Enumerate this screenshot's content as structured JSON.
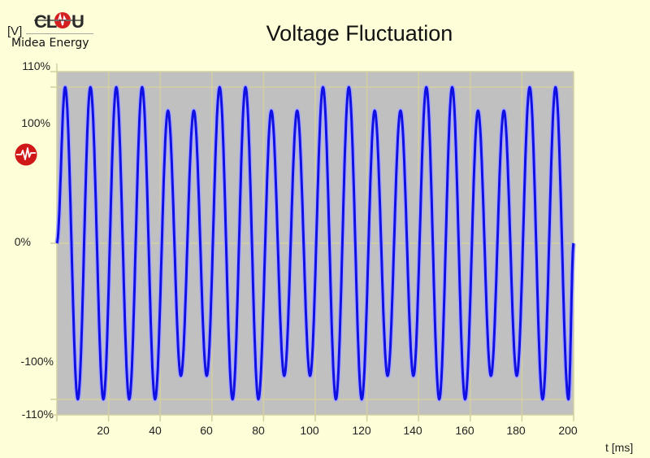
{
  "header": {
    "title": "Voltage Fluctuation",
    "y_unit": "[V]",
    "brand_logo_text": "CLOU",
    "brand_name": "Midea Energy"
  },
  "axes": {
    "y_ticks": [
      "110%",
      "100%",
      "0%",
      "-100%",
      "-110%"
    ],
    "x_ticks": [
      "20",
      "40",
      "60",
      "80",
      "100",
      "120",
      "140",
      "160",
      "180",
      "200"
    ],
    "x_label": "t [ms]"
  },
  "icons": {
    "brand": "waveform-logo-icon",
    "side": "waveform-alert-icon"
  },
  "colors": {
    "page_background": "#fefed8",
    "plot_background": "#c0c0c0",
    "grid": "#d4cfa0",
    "trace": "#1010e0",
    "trace_glow": "#a8a8ff",
    "brand_red": "#d42020"
  },
  "chart_data": {
    "type": "line",
    "title": "Voltage Fluctuation",
    "xlabel": "t [ms]",
    "ylabel": "[V]",
    "xlim": [
      0,
      200
    ],
    "ylim": [
      -110,
      110
    ],
    "y_unit": "%",
    "grid": true,
    "legend": null,
    "signal": "sinusoidal voltage, ~100 Hz peak spacing (positive peak every ~10 ms), amplitude periodically dropping to ~85%",
    "series": [
      {
        "name": "Voltage",
        "peak_times_ms": [
          3.2,
          13.0,
          23.0,
          33.0,
          43.0,
          53.0,
          63.0,
          73.0,
          83.0,
          93.0,
          103.0,
          113.0,
          123.0,
          133.0,
          143.0,
          153.0,
          163.0,
          173.0,
          183.0,
          193.0
        ],
        "peak_values_pct": [
          100,
          100,
          100,
          100,
          85,
          85,
          100,
          100,
          85,
          85,
          100,
          100,
          85,
          85,
          100,
          100,
          85,
          85,
          100,
          100
        ],
        "trough_times_ms": [
          8.1,
          18.0,
          28.0,
          38.0,
          48.0,
          58.0,
          68.0,
          78.0,
          88.0,
          98.0,
          108.0,
          118.0,
          128.0,
          138.0,
          148.0,
          158.0,
          168.0,
          178.0,
          188.0,
          198.0
        ],
        "trough_values_pct": [
          -100,
          -100,
          -100,
          -100,
          -85,
          -85,
          -100,
          -100,
          -85,
          -85,
          -100,
          -100,
          -85,
          -85,
          -100,
          -100,
          -85,
          -85,
          -100,
          -100
        ],
        "start_value_pct": 0,
        "end_value_pct": 0
      }
    ]
  }
}
